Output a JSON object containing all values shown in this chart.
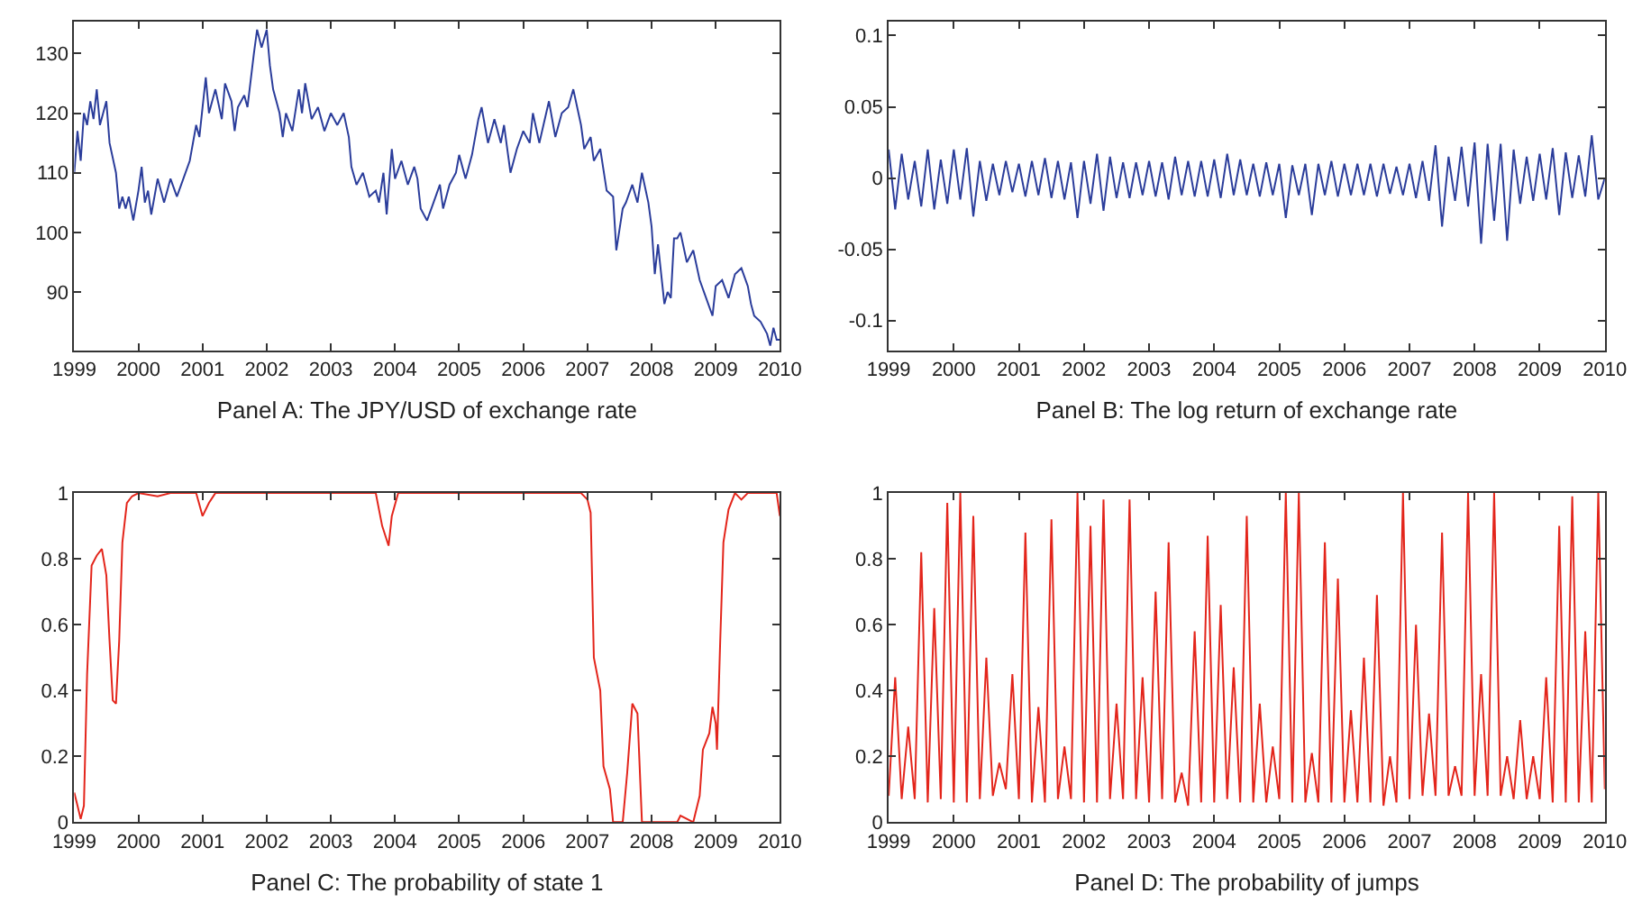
{
  "chart_data": [
    {
      "type": "line",
      "xlabel": "Panel A: The JPY/USD of exchange rate",
      "color": "#2b3d9b",
      "xlim": [
        1999,
        2010
      ],
      "xticks": [
        1999,
        2000,
        2001,
        2002,
        2003,
        2004,
        2005,
        2006,
        2007,
        2008,
        2009,
        2010
      ],
      "ylim": [
        80.2,
        135.4
      ],
      "yticks": [
        90,
        100,
        110,
        120,
        130
      ],
      "x": [
        1999.0,
        1999.05,
        1999.1,
        1999.15,
        1999.2,
        1999.25,
        1999.3,
        1999.35,
        1999.4,
        1999.5,
        1999.55,
        1999.65,
        1999.7,
        1999.75,
        1999.8,
        1999.85,
        1999.92,
        2000.0,
        2000.05,
        2000.1,
        2000.15,
        2000.2,
        2000.3,
        2000.4,
        2000.5,
        2000.6,
        2000.7,
        2000.8,
        2000.9,
        2000.95,
        2001.0,
        2001.05,
        2001.1,
        2001.2,
        2001.3,
        2001.35,
        2001.45,
        2001.5,
        2001.55,
        2001.65,
        2001.7,
        2001.8,
        2001.85,
        2001.92,
        2002.0,
        2002.05,
        2002.1,
        2002.2,
        2002.25,
        2002.3,
        2002.4,
        2002.5,
        2002.55,
        2002.6,
        2002.7,
        2002.8,
        2002.9,
        2003.0,
        2003.1,
        2003.2,
        2003.28,
        2003.32,
        2003.4,
        2003.5,
        2003.6,
        2003.7,
        2003.75,
        2003.82,
        2003.87,
        2003.95,
        2004.0,
        2004.1,
        2004.2,
        2004.3,
        2004.35,
        2004.4,
        2004.5,
        2004.6,
        2004.7,
        2004.75,
        2004.85,
        2004.95,
        2005.0,
        2005.1,
        2005.2,
        2005.3,
        2005.35,
        2005.45,
        2005.55,
        2005.65,
        2005.7,
        2005.8,
        2005.9,
        2006.0,
        2006.1,
        2006.15,
        2006.25,
        2006.4,
        2006.5,
        2006.6,
        2006.7,
        2006.78,
        2006.9,
        2006.95,
        2007.05,
        2007.1,
        2007.2,
        2007.3,
        2007.4,
        2007.45,
        2007.55,
        2007.6,
        2007.7,
        2007.78,
        2007.85,
        2007.95,
        2008.0,
        2008.05,
        2008.1,
        2008.2,
        2008.25,
        2008.3,
        2008.35,
        2008.4,
        2008.45,
        2008.55,
        2008.65,
        2008.75,
        2008.85,
        2008.95,
        2009.0,
        2009.1,
        2009.2,
        2009.3,
        2009.4,
        2009.5,
        2009.55,
        2009.6,
        2009.7,
        2009.8,
        2009.85,
        2009.9,
        2009.95,
        2010.0
      ],
      "values": [
        110,
        117,
        112,
        120,
        118,
        122,
        119,
        124,
        118,
        122,
        115,
        110,
        104,
        106,
        104,
        106,
        102,
        107,
        111,
        105,
        107,
        103,
        109,
        105,
        109,
        106,
        109,
        112,
        118,
        116,
        121,
        126,
        120,
        124,
        119,
        125,
        122,
        117,
        121,
        123,
        121,
        130,
        134,
        131,
        134,
        128,
        124,
        120,
        116,
        120,
        117,
        124,
        120,
        125,
        119,
        121,
        117,
        120,
        118,
        120,
        116,
        111,
        108,
        110,
        106,
        107,
        105,
        110,
        103,
        114,
        109,
        112,
        108,
        111,
        109,
        104,
        102,
        105,
        108,
        104,
        108,
        110,
        113,
        109,
        113,
        119,
        121,
        115,
        119,
        115,
        118,
        110,
        114,
        117,
        115,
        120,
        115,
        122,
        116,
        120,
        121,
        124,
        118,
        114,
        116,
        112,
        114,
        107,
        106,
        97,
        104,
        105,
        108,
        105,
        110,
        105,
        101,
        93,
        98,
        88,
        90,
        89,
        99,
        99,
        100,
        95,
        97,
        92,
        89,
        86,
        91,
        92,
        89,
        93,
        94,
        91,
        88,
        86,
        85,
        83,
        81,
        84,
        82,
        82
      ]
    },
    {
      "type": "line",
      "xlabel": "Panel B: The log return of exchange rate",
      "color": "#2b3d9b",
      "xlim": [
        1999,
        2010
      ],
      "xticks": [
        1999,
        2000,
        2001,
        2002,
        2003,
        2004,
        2005,
        2006,
        2007,
        2008,
        2009,
        2010
      ],
      "ylim": [
        -0.121,
        0.11
      ],
      "yticks": [
        -0.1,
        -0.05,
        0,
        0.05,
        0.1
      ],
      "x": [
        1999.0,
        1999.1,
        1999.2,
        1999.3,
        1999.4,
        1999.5,
        1999.6,
        1999.7,
        1999.8,
        1999.9,
        2000.0,
        2000.1,
        2000.2,
        2000.3,
        2000.4,
        2000.5,
        2000.6,
        2000.7,
        2000.8,
        2000.9,
        2001.0,
        2001.1,
        2001.2,
        2001.3,
        2001.4,
        2001.5,
        2001.6,
        2001.7,
        2001.8,
        2001.9,
        2002.0,
        2002.1,
        2002.2,
        2002.3,
        2002.4,
        2002.5,
        2002.6,
        2002.7,
        2002.8,
        2002.9,
        2003.0,
        2003.1,
        2003.2,
        2003.3,
        2003.4,
        2003.5,
        2003.6,
        2003.7,
        2003.8,
        2003.9,
        2004.0,
        2004.1,
        2004.2,
        2004.3,
        2004.4,
        2004.5,
        2004.6,
        2004.7,
        2004.8,
        2004.9,
        2005.0,
        2005.1,
        2005.2,
        2005.3,
        2005.4,
        2005.5,
        2005.6,
        2005.7,
        2005.8,
        2005.9,
        2006.0,
        2006.1,
        2006.2,
        2006.3,
        2006.4,
        2006.5,
        2006.6,
        2006.7,
        2006.8,
        2006.9,
        2007.0,
        2007.1,
        2007.2,
        2007.3,
        2007.4,
        2007.5,
        2007.6,
        2007.7,
        2007.8,
        2007.9,
        2008.0,
        2008.1,
        2008.2,
        2008.3,
        2008.4,
        2008.5,
        2008.6,
        2008.7,
        2008.8,
        2008.9,
        2009.0,
        2009.1,
        2009.2,
        2009.3,
        2009.4,
        2009.5,
        2009.6,
        2009.7,
        2009.8,
        2009.9,
        2010.0
      ],
      "values": [
        0.02,
        -0.022,
        0.017,
        -0.015,
        0.012,
        -0.02,
        0.02,
        -0.022,
        0.013,
        -0.018,
        0.02,
        -0.015,
        0.021,
        -0.027,
        0.012,
        -0.016,
        0.01,
        -0.012,
        0.012,
        -0.01,
        0.01,
        -0.013,
        0.012,
        -0.012,
        0.014,
        -0.014,
        0.012,
        -0.015,
        0.011,
        -0.028,
        0.012,
        -0.018,
        0.017,
        -0.023,
        0.015,
        -0.014,
        0.011,
        -0.014,
        0.011,
        -0.012,
        0.012,
        -0.013,
        0.011,
        -0.015,
        0.015,
        -0.012,
        0.012,
        -0.013,
        0.012,
        -0.013,
        0.013,
        -0.014,
        0.017,
        -0.012,
        0.013,
        -0.012,
        0.01,
        -0.013,
        0.011,
        -0.012,
        0.01,
        -0.028,
        0.009,
        -0.012,
        0.01,
        -0.026,
        0.01,
        -0.012,
        0.012,
        -0.013,
        0.01,
        -0.012,
        0.01,
        -0.012,
        0.01,
        -0.013,
        0.01,
        -0.011,
        0.008,
        -0.012,
        0.01,
        -0.014,
        0.012,
        -0.016,
        0.023,
        -0.034,
        0.015,
        -0.016,
        0.022,
        -0.02,
        0.025,
        -0.046,
        0.024,
        -0.03,
        0.024,
        -0.044,
        0.02,
        -0.018,
        0.015,
        -0.016,
        0.017,
        -0.015,
        0.021,
        -0.026,
        0.018,
        -0.014,
        0.016,
        -0.013,
        0.03,
        -0.015,
        0.0
      ]
    },
    {
      "type": "line",
      "xlabel": "Panel C: The probability of state 1",
      "color": "#e3251b",
      "xlim": [
        1999,
        2010
      ],
      "xticks": [
        1999,
        2000,
        2001,
        2002,
        2003,
        2004,
        2005,
        2006,
        2007,
        2008,
        2009,
        2010
      ],
      "ylim": [
        0,
        1
      ],
      "yticks": [
        0,
        0.2,
        0.4,
        0.6,
        0.8,
        1
      ],
      "x": [
        1999.0,
        1999.05,
        1999.1,
        1999.15,
        1999.2,
        1999.27,
        1999.35,
        1999.43,
        1999.5,
        1999.55,
        1999.6,
        1999.65,
        1999.7,
        1999.75,
        1999.82,
        1999.9,
        2000.0,
        2000.3,
        2000.5,
        2000.9,
        2001.0,
        2001.1,
        2001.2,
        2003.7,
        2003.8,
        2003.9,
        2003.95,
        2004.05,
        2006.9,
        2007.0,
        2007.05,
        2007.1,
        2007.2,
        2007.25,
        2007.35,
        2007.4,
        2007.55,
        2007.62,
        2007.7,
        2007.78,
        2007.85,
        2008.4,
        2008.45,
        2008.65,
        2008.75,
        2008.8,
        2008.9,
        2008.95,
        2009.0,
        2009.02,
        2009.07,
        2009.12,
        2009.2,
        2009.3,
        2009.4,
        2009.5,
        2009.95,
        2010.0
      ],
      "values": [
        0.09,
        0.05,
        0.01,
        0.05,
        0.45,
        0.78,
        0.81,
        0.83,
        0.75,
        0.55,
        0.37,
        0.36,
        0.55,
        0.85,
        0.97,
        0.99,
        1.0,
        0.99,
        1.0,
        1.0,
        0.93,
        0.97,
        1.0,
        1.0,
        0.9,
        0.84,
        0.93,
        1.0,
        1.0,
        0.98,
        0.94,
        0.5,
        0.4,
        0.17,
        0.1,
        0.0,
        0.0,
        0.15,
        0.36,
        0.33,
        0.0,
        0.0,
        0.02,
        0.0,
        0.08,
        0.22,
        0.27,
        0.35,
        0.3,
        0.22,
        0.55,
        0.85,
        0.95,
        1.0,
        0.98,
        1.0,
        1.0,
        0.93
      ]
    },
    {
      "type": "line",
      "xlabel": "Panel D: The probability of jumps",
      "color": "#e3251b",
      "xlim": [
        1999,
        2010
      ],
      "xticks": [
        1999,
        2000,
        2001,
        2002,
        2003,
        2004,
        2005,
        2006,
        2007,
        2008,
        2009,
        2010
      ],
      "ylim": [
        0,
        1
      ],
      "yticks": [
        0,
        0.2,
        0.4,
        0.6,
        0.8,
        1
      ],
      "x": [
        1999.0,
        1999.1,
        1999.2,
        1999.3,
        1999.4,
        1999.5,
        1999.6,
        1999.7,
        1999.8,
        1999.9,
        2000.0,
        2000.1,
        2000.2,
        2000.3,
        2000.4,
        2000.5,
        2000.6,
        2000.7,
        2000.8,
        2000.9,
        2001.0,
        2001.1,
        2001.2,
        2001.3,
        2001.4,
        2001.5,
        2001.6,
        2001.7,
        2001.8,
        2001.9,
        2002.0,
        2002.1,
        2002.2,
        2002.3,
        2002.4,
        2002.5,
        2002.6,
        2002.7,
        2002.8,
        2002.9,
        2003.0,
        2003.1,
        2003.2,
        2003.3,
        2003.4,
        2003.5,
        2003.6,
        2003.7,
        2003.8,
        2003.9,
        2004.0,
        2004.1,
        2004.2,
        2004.3,
        2004.4,
        2004.5,
        2004.6,
        2004.7,
        2004.8,
        2004.9,
        2005.0,
        2005.1,
        2005.2,
        2005.3,
        2005.4,
        2005.5,
        2005.6,
        2005.7,
        2005.8,
        2005.9,
        2006.0,
        2006.1,
        2006.2,
        2006.3,
        2006.4,
        2006.5,
        2006.6,
        2006.7,
        2006.8,
        2006.9,
        2007.0,
        2007.1,
        2007.2,
        2007.3,
        2007.4,
        2007.5,
        2007.6,
        2007.7,
        2007.8,
        2007.9,
        2008.0,
        2008.1,
        2008.2,
        2008.3,
        2008.4,
        2008.5,
        2008.6,
        2008.7,
        2008.8,
        2008.9,
        2009.0,
        2009.1,
        2009.2,
        2009.3,
        2009.4,
        2009.5,
        2009.6,
        2009.7,
        2009.8,
        2009.9,
        2010.0
      ],
      "values": [
        0.08,
        0.44,
        0.07,
        0.29,
        0.07,
        0.82,
        0.06,
        0.65,
        0.07,
        0.97,
        0.06,
        1.0,
        0.06,
        0.93,
        0.07,
        0.5,
        0.08,
        0.18,
        0.1,
        0.45,
        0.07,
        0.88,
        0.06,
        0.35,
        0.06,
        0.92,
        0.07,
        0.23,
        0.07,
        1.0,
        0.06,
        0.9,
        0.06,
        0.98,
        0.07,
        0.36,
        0.07,
        0.98,
        0.07,
        0.44,
        0.06,
        0.7,
        0.07,
        0.85,
        0.06,
        0.15,
        0.05,
        0.58,
        0.06,
        0.87,
        0.06,
        0.66,
        0.07,
        0.47,
        0.06,
        0.93,
        0.06,
        0.36,
        0.06,
        0.23,
        0.07,
        1.0,
        0.06,
        1.0,
        0.06,
        0.21,
        0.06,
        0.85,
        0.06,
        0.74,
        0.06,
        0.34,
        0.06,
        0.5,
        0.06,
        0.69,
        0.05,
        0.2,
        0.06,
        1.0,
        0.07,
        0.6,
        0.08,
        0.33,
        0.08,
        0.88,
        0.08,
        0.17,
        0.08,
        1.0,
        0.08,
        0.45,
        0.08,
        1.0,
        0.08,
        0.2,
        0.07,
        0.31,
        0.07,
        0.2,
        0.07,
        0.44,
        0.06,
        0.9,
        0.06,
        0.99,
        0.06,
        0.58,
        0.06,
        1.0,
        0.1
      ]
    }
  ]
}
